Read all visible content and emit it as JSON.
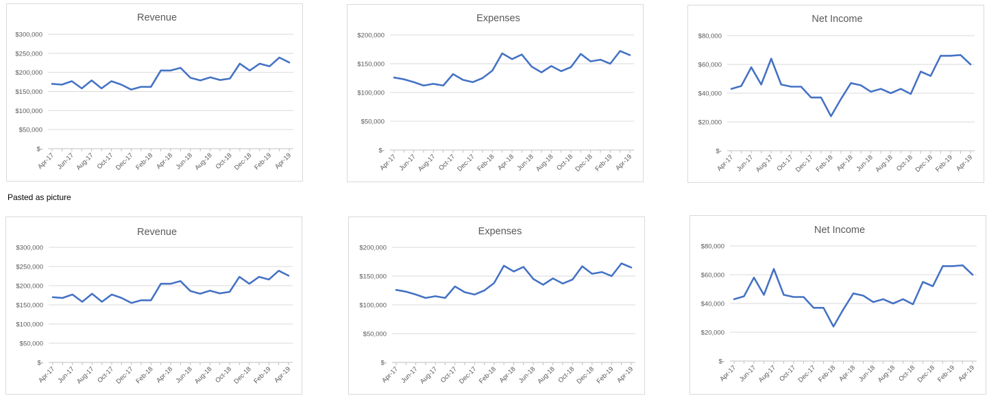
{
  "caption": "Pasted as picture",
  "x_labels": [
    "Apr-17",
    "Jun-17",
    "Aug-17",
    "Oct-17",
    "Dec-17",
    "Feb-18",
    "Apr-18",
    "Jun-18",
    "Aug-18",
    "Oct-18",
    "Dec-18",
    "Feb-19",
    "Apr-19"
  ],
  "chart_data": [
    {
      "id": "revenue-top",
      "type": "line",
      "title": "Revenue",
      "x": [
        "Apr-17",
        "May-17",
        "Jun-17",
        "Jul-17",
        "Aug-17",
        "Sep-17",
        "Oct-17",
        "Nov-17",
        "Dec-17",
        "Jan-18",
        "Feb-18",
        "Mar-18",
        "Apr-18",
        "May-18",
        "Jun-18",
        "Jul-18",
        "Aug-18",
        "Sep-18",
        "Oct-18",
        "Nov-18",
        "Dec-18",
        "Jan-19",
        "Feb-19",
        "Mar-19",
        "Apr-19"
      ],
      "series": [
        {
          "values": [
            170000,
            168000,
            177000,
            158000,
            179000,
            158000,
            177000,
            168000,
            155000,
            162000,
            162000,
            205000,
            205000,
            212000,
            186000,
            179000,
            187000,
            180000,
            184000,
            223000,
            205000,
            223000,
            216000,
            239000,
            226000
          ]
        }
      ],
      "yticks": [
        "$-",
        "$50,000",
        "$100,000",
        "$150,000",
        "$200,000",
        "$250,000",
        "$300,000"
      ],
      "ylim": [
        0,
        300000
      ],
      "grid": true,
      "color": "#4472c4"
    },
    {
      "id": "expenses-top",
      "type": "line",
      "title": "Expenses",
      "x": [
        "Apr-17",
        "May-17",
        "Jun-17",
        "Jul-17",
        "Aug-17",
        "Sep-17",
        "Oct-17",
        "Nov-17",
        "Dec-17",
        "Jan-18",
        "Feb-18",
        "Mar-18",
        "Apr-18",
        "May-18",
        "Jun-18",
        "Jul-18",
        "Aug-18",
        "Sep-18",
        "Oct-18",
        "Nov-18",
        "Dec-18",
        "Jan-19",
        "Feb-19",
        "Mar-19",
        "Apr-19"
      ],
      "series": [
        {
          "values": [
            126000,
            123000,
            118000,
            112000,
            115000,
            112000,
            132000,
            122000,
            118000,
            125000,
            138000,
            168000,
            158000,
            166000,
            145000,
            135000,
            146000,
            137000,
            144000,
            167000,
            154000,
            157000,
            150000,
            172000,
            165000
          ]
        }
      ],
      "yticks": [
        "$-",
        "$50,000",
        "$100,000",
        "$150,000",
        "$200,000"
      ],
      "ylim": [
        0,
        200000
      ],
      "grid": true,
      "color": "#4472c4"
    },
    {
      "id": "netincome-top",
      "type": "line",
      "title": "Net Income",
      "x": [
        "Apr-17",
        "May-17",
        "Jun-17",
        "Jul-17",
        "Aug-17",
        "Sep-17",
        "Oct-17",
        "Nov-17",
        "Dec-17",
        "Jan-18",
        "Feb-18",
        "Mar-18",
        "Apr-18",
        "May-18",
        "Jun-18",
        "Jul-18",
        "Aug-18",
        "Sep-18",
        "Oct-18",
        "Nov-18",
        "Dec-18",
        "Jan-19",
        "Feb-19",
        "Mar-19",
        "Apr-19"
      ],
      "series": [
        {
          "values": [
            43000,
            45000,
            58000,
            46000,
            64000,
            46000,
            44500,
            44500,
            37000,
            37000,
            24000,
            36000,
            47000,
            45500,
            41000,
            43000,
            40000,
            43000,
            39500,
            55000,
            52000,
            66000,
            66000,
            66500,
            60000
          ]
        }
      ],
      "yticks": [
        "$-",
        "$20,000",
        "$40,000",
        "$60,000",
        "$80,000"
      ],
      "ylim": [
        0,
        80000
      ],
      "grid": true,
      "color": "#4472c4"
    },
    {
      "id": "revenue-bottom",
      "type": "line",
      "title": "Revenue",
      "x": [
        "Apr-17",
        "May-17",
        "Jun-17",
        "Jul-17",
        "Aug-17",
        "Sep-17",
        "Oct-17",
        "Nov-17",
        "Dec-17",
        "Jan-18",
        "Feb-18",
        "Mar-18",
        "Apr-18",
        "May-18",
        "Jun-18",
        "Jul-18",
        "Aug-18",
        "Sep-18",
        "Oct-18",
        "Nov-18",
        "Dec-18",
        "Jan-19",
        "Feb-19",
        "Mar-19",
        "Apr-19"
      ],
      "series": [
        {
          "values": [
            170000,
            168000,
            177000,
            158000,
            179000,
            158000,
            177000,
            168000,
            155000,
            162000,
            162000,
            205000,
            205000,
            212000,
            186000,
            179000,
            187000,
            180000,
            184000,
            223000,
            205000,
            223000,
            216000,
            239000,
            226000
          ]
        }
      ],
      "yticks": [
        "$-",
        "$50,000",
        "$100,000",
        "$150,000",
        "$200,000",
        "$250,000",
        "$300,000"
      ],
      "ylim": [
        0,
        300000
      ],
      "grid": true,
      "color": "#4472c4"
    },
    {
      "id": "expenses-bottom",
      "type": "line",
      "title": "Expenses",
      "x": [
        "Apr-17",
        "May-17",
        "Jun-17",
        "Jul-17",
        "Aug-17",
        "Sep-17",
        "Oct-17",
        "Nov-17",
        "Dec-17",
        "Jan-18",
        "Feb-18",
        "Mar-18",
        "Apr-18",
        "May-18",
        "Jun-18",
        "Jul-18",
        "Aug-18",
        "Sep-18",
        "Oct-18",
        "Nov-18",
        "Dec-18",
        "Jan-19",
        "Feb-19",
        "Mar-19",
        "Apr-19"
      ],
      "series": [
        {
          "values": [
            126000,
            123000,
            118000,
            112000,
            115000,
            112000,
            132000,
            122000,
            118000,
            125000,
            138000,
            168000,
            158000,
            166000,
            145000,
            135000,
            146000,
            137000,
            144000,
            167000,
            154000,
            157000,
            150000,
            172000,
            165000
          ]
        }
      ],
      "yticks": [
        "$-",
        "$50,000",
        "$100,000",
        "$150,000",
        "$200,000"
      ],
      "ylim": [
        0,
        200000
      ],
      "grid": true,
      "color": "#4472c4"
    },
    {
      "id": "netincome-bottom",
      "type": "line",
      "title": "Net Income",
      "x": [
        "Apr-17",
        "May-17",
        "Jun-17",
        "Jul-17",
        "Aug-17",
        "Sep-17",
        "Oct-17",
        "Nov-17",
        "Dec-17",
        "Jan-18",
        "Feb-18",
        "Mar-18",
        "Apr-18",
        "May-18",
        "Jun-18",
        "Jul-18",
        "Aug-18",
        "Sep-18",
        "Oct-18",
        "Nov-18",
        "Dec-18",
        "Jan-19",
        "Feb-19",
        "Mar-19",
        "Apr-19"
      ],
      "series": [
        {
          "values": [
            43000,
            45000,
            58000,
            46000,
            64000,
            46000,
            44500,
            44500,
            37000,
            37000,
            24000,
            36000,
            47000,
            45500,
            41000,
            43000,
            40000,
            43000,
            39500,
            55000,
            52000,
            66000,
            66000,
            66500,
            60000
          ]
        }
      ],
      "yticks": [
        "$-",
        "$20,000",
        "$40,000",
        "$60,000",
        "$80,000"
      ],
      "ylim": [
        0,
        80000
      ],
      "grid": true,
      "color": "#4472c4"
    }
  ]
}
